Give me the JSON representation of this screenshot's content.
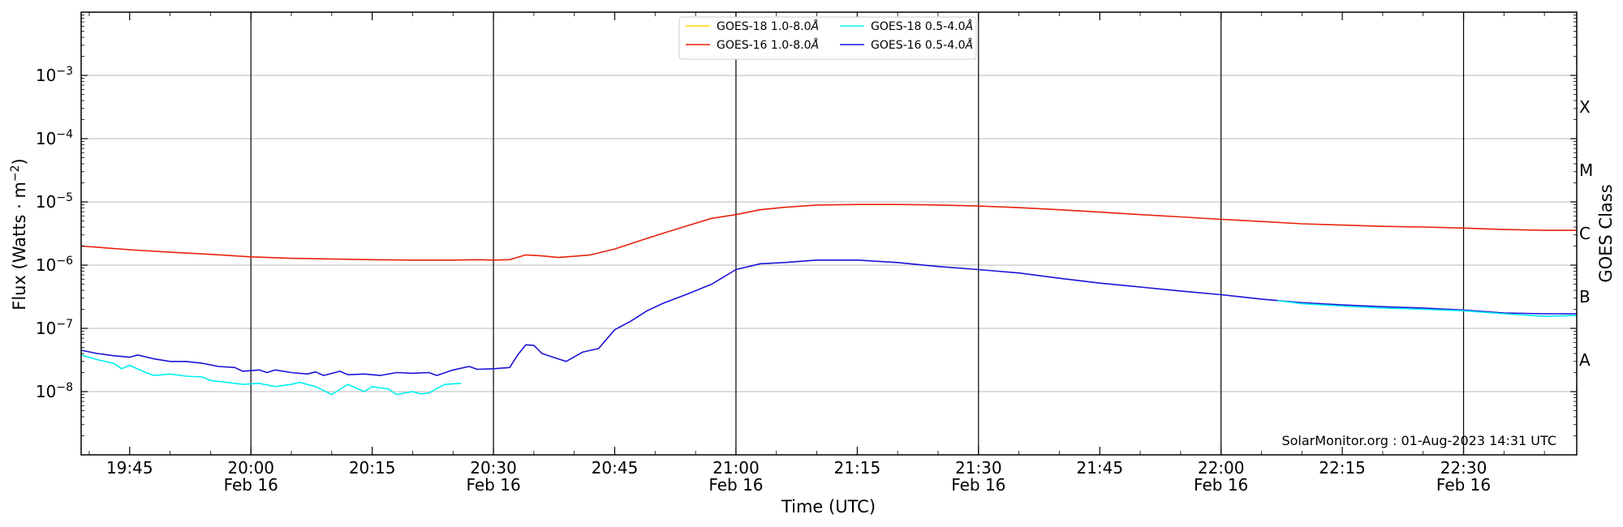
{
  "chart_data": {
    "type": "line",
    "xlabel": "Time (UTC)",
    "ylabel_base": "Flux (Watts · m",
    "ylabel_sup": "−2",
    "ylabel_tail": ")",
    "y_scale": "log",
    "ylim_exp": [
      -9,
      -2
    ],
    "yticks": [
      {
        "exp": -8,
        "base": "10",
        "sup": "−8"
      },
      {
        "exp": -7,
        "base": "10",
        "sup": "−7"
      },
      {
        "exp": -6,
        "base": "10",
        "sup": "−6"
      },
      {
        "exp": -5,
        "base": "10",
        "sup": "−5"
      },
      {
        "exp": -4,
        "base": "10",
        "sup": "−4"
      },
      {
        "exp": -3,
        "base": "10",
        "sup": "−3"
      }
    ],
    "xlim": [
      "19:39",
      "22:44"
    ],
    "xticks": [
      {
        "t": "19:45",
        "label": "19:45",
        "date": ""
      },
      {
        "t": "20:00",
        "label": "20:00",
        "date": "Feb 16"
      },
      {
        "t": "20:15",
        "label": "20:15",
        "date": ""
      },
      {
        "t": "20:30",
        "label": "20:30",
        "date": "Feb 16"
      },
      {
        "t": "20:45",
        "label": "20:45",
        "date": ""
      },
      {
        "t": "21:00",
        "label": "21:00",
        "date": "Feb 16"
      },
      {
        "t": "21:15",
        "label": "21:15",
        "date": ""
      },
      {
        "t": "21:30",
        "label": "21:30",
        "date": "Feb 16"
      },
      {
        "t": "21:45",
        "label": "21:45",
        "date": ""
      },
      {
        "t": "22:00",
        "label": "22:00",
        "date": "Feb 16"
      },
      {
        "t": "22:15",
        "label": "22:15",
        "date": ""
      },
      {
        "t": "22:30",
        "label": "22:30",
        "date": "Feb 16"
      }
    ],
    "vlines": [
      "20:00",
      "20:30",
      "21:00",
      "21:30",
      "22:00",
      "22:30"
    ],
    "grid": "horizontal",
    "right_axis": {
      "title": "GOES Class",
      "classes": [
        {
          "label": "A",
          "exp": -7.5
        },
        {
          "label": "B",
          "exp": -6.5
        },
        {
          "label": "C",
          "exp": -5.5
        },
        {
          "label": "M",
          "exp": -4.5
        },
        {
          "label": "X",
          "exp": -3.5
        }
      ]
    },
    "credit": "SolarMonitor.org : 01-Aug-2023 14:31 UTC",
    "legend_position": "top-center",
    "legend": [
      {
        "name": "GOES-18 1.0-8.0",
        "unit": "Å",
        "color": "#ffd700"
      },
      {
        "name": "GOES-16 1.0-8.0",
        "unit": "Å",
        "color": "#e8210c"
      },
      {
        "name": "GOES-18 0.5-4.0",
        "unit": "Å",
        "color": "#00f0f0"
      },
      {
        "name": "GOES-16 0.5-4.0",
        "unit": "Å",
        "color": "#1c12d6"
      }
    ],
    "series": [
      {
        "name": "GOES-16 1.0-8.0Å",
        "color": "#e8210c",
        "points": [
          [
            "19:39",
            2e-06
          ],
          [
            "19:45",
            1.75e-06
          ],
          [
            "19:50",
            1.6e-06
          ],
          [
            "19:55",
            1.48e-06
          ],
          [
            "20:00",
            1.35e-06
          ],
          [
            "20:05",
            1.28e-06
          ],
          [
            "20:10",
            1.25e-06
          ],
          [
            "20:15",
            1.22e-06
          ],
          [
            "20:20",
            1.2e-06
          ],
          [
            "20:25",
            1.2e-06
          ],
          [
            "20:28",
            1.22e-06
          ],
          [
            "20:30",
            1.2e-06
          ],
          [
            "20:32",
            1.22e-06
          ],
          [
            "20:34",
            1.45e-06
          ],
          [
            "20:36",
            1.4e-06
          ],
          [
            "20:38",
            1.32e-06
          ],
          [
            "20:40",
            1.38e-06
          ],
          [
            "20:42",
            1.45e-06
          ],
          [
            "20:45",
            1.8e-06
          ],
          [
            "20:48",
            2.4e-06
          ],
          [
            "20:51",
            3.2e-06
          ],
          [
            "20:54",
            4.2e-06
          ],
          [
            "20:57",
            5.5e-06
          ],
          [
            "21:00",
            6.3e-06
          ],
          [
            "21:03",
            7.5e-06
          ],
          [
            "21:06",
            8.2e-06
          ],
          [
            "21:10",
            8.9e-06
          ],
          [
            "21:15",
            9.1e-06
          ],
          [
            "21:20",
            9.1e-06
          ],
          [
            "21:25",
            8.9e-06
          ],
          [
            "21:30",
            8.6e-06
          ],
          [
            "21:35",
            8.1e-06
          ],
          [
            "21:40",
            7.5e-06
          ],
          [
            "21:45",
            6.9e-06
          ],
          [
            "21:50",
            6.3e-06
          ],
          [
            "21:55",
            5.8e-06
          ],
          [
            "22:00",
            5.3e-06
          ],
          [
            "22:05",
            4.9e-06
          ],
          [
            "22:10",
            4.5e-06
          ],
          [
            "22:15",
            4.3e-06
          ],
          [
            "22:20",
            4.1e-06
          ],
          [
            "22:25",
            4e-06
          ],
          [
            "22:30",
            3.85e-06
          ],
          [
            "22:35",
            3.65e-06
          ],
          [
            "22:40",
            3.55e-06
          ],
          [
            "22:44",
            3.55e-06
          ]
        ]
      },
      {
        "name": "GOES-16 0.5-4.0Å",
        "color": "#1c12d6",
        "points": [
          [
            "19:39",
            4.5e-08
          ],
          [
            "19:41",
            4e-08
          ],
          [
            "19:43",
            3.7e-08
          ],
          [
            "19:45",
            3.5e-08
          ],
          [
            "19:46",
            3.8e-08
          ],
          [
            "19:48",
            3.3e-08
          ],
          [
            "19:50",
            3e-08
          ],
          [
            "19:52",
            3e-08
          ],
          [
            "19:54",
            2.8e-08
          ],
          [
            "19:56",
            2.5e-08
          ],
          [
            "19:58",
            2.4e-08
          ],
          [
            "19:59",
            2.1e-08
          ],
          [
            "20:01",
            2.2e-08
          ],
          [
            "20:02",
            2e-08
          ],
          [
            "20:03",
            2.2e-08
          ],
          [
            "20:05",
            2e-08
          ],
          [
            "20:07",
            1.9e-08
          ],
          [
            "20:08",
            2.05e-08
          ],
          [
            "20:09",
            1.8e-08
          ],
          [
            "20:11",
            2.1e-08
          ],
          [
            "20:12",
            1.85e-08
          ],
          [
            "20:14",
            1.9e-08
          ],
          [
            "20:16",
            1.8e-08
          ],
          [
            "20:18",
            2e-08
          ],
          [
            "20:20",
            1.95e-08
          ],
          [
            "20:22",
            2e-08
          ],
          [
            "20:23",
            1.8e-08
          ],
          [
            "20:25",
            2.2e-08
          ],
          [
            "20:27",
            2.5e-08
          ],
          [
            "20:28",
            2.25e-08
          ],
          [
            "20:30",
            2.3e-08
          ],
          [
            "20:32",
            2.4e-08
          ],
          [
            "20:33",
            3.8e-08
          ],
          [
            "20:34",
            5.5e-08
          ],
          [
            "20:35",
            5.4e-08
          ],
          [
            "20:36",
            4e-08
          ],
          [
            "20:38",
            3.3e-08
          ],
          [
            "20:39",
            3e-08
          ],
          [
            "20:41",
            4.2e-08
          ],
          [
            "20:43",
            4.8e-08
          ],
          [
            "20:45",
            9.5e-08
          ],
          [
            "20:47",
            1.3e-07
          ],
          [
            "20:49",
            1.9e-07
          ],
          [
            "20:51",
            2.5e-07
          ],
          [
            "20:54",
            3.5e-07
          ],
          [
            "20:57",
            5e-07
          ],
          [
            "21:00",
            8.5e-07
          ],
          [
            "21:03",
            1.05e-06
          ],
          [
            "21:06",
            1.1e-06
          ],
          [
            "21:10",
            1.2e-06
          ],
          [
            "21:15",
            1.2e-06
          ],
          [
            "21:20",
            1.1e-06
          ],
          [
            "21:25",
            9.5e-07
          ],
          [
            "21:30",
            8.5e-07
          ],
          [
            "21:35",
            7.5e-07
          ],
          [
            "21:40",
            6.2e-07
          ],
          [
            "21:45",
            5.2e-07
          ],
          [
            "21:50",
            4.5e-07
          ],
          [
            "21:55",
            3.9e-07
          ],
          [
            "22:00",
            3.4e-07
          ],
          [
            "22:05",
            2.9e-07
          ],
          [
            "22:10",
            2.55e-07
          ],
          [
            "22:15",
            2.35e-07
          ],
          [
            "22:20",
            2.2e-07
          ],
          [
            "22:25",
            2.1e-07
          ],
          [
            "22:30",
            1.95e-07
          ],
          [
            "22:35",
            1.75e-07
          ],
          [
            "22:40",
            1.7e-07
          ],
          [
            "22:44",
            1.7e-07
          ]
        ]
      },
      {
        "name": "GOES-18 0.5-4.0Å",
        "color": "#00f0f0",
        "points": [
          [
            "19:39",
            3.8e-08
          ],
          [
            "19:41",
            3.2e-08
          ],
          [
            "19:43",
            2.8e-08
          ],
          [
            "19:44",
            2.3e-08
          ],
          [
            "19:45",
            2.6e-08
          ],
          [
            "19:47",
            2e-08
          ],
          [
            "19:48",
            1.8e-08
          ],
          [
            "19:50",
            1.9e-08
          ],
          [
            "19:52",
            1.75e-08
          ],
          [
            "19:54",
            1.7e-08
          ],
          [
            "19:55",
            1.5e-08
          ],
          [
            "19:57",
            1.4e-08
          ],
          [
            "19:59",
            1.3e-08
          ],
          [
            "20:01",
            1.35e-08
          ],
          [
            "20:03",
            1.2e-08
          ],
          [
            "20:05",
            1.3e-08
          ],
          [
            "20:06",
            1.4e-08
          ],
          [
            "20:08",
            1.2e-08
          ],
          [
            "20:10",
            9e-09
          ],
          [
            "20:12",
            1.3e-08
          ],
          [
            "20:14",
            1e-08
          ],
          [
            "20:15",
            1.2e-08
          ],
          [
            "20:17",
            1.1e-08
          ],
          [
            "20:18",
            9e-09
          ],
          [
            "20:20",
            1e-08
          ],
          [
            "20:21",
            9.2e-09
          ],
          [
            "20:22",
            9.5e-09
          ],
          [
            "20:24",
            1.3e-08
          ],
          [
            "20:26",
            1.35e-08
          ],
          [
            null,
            null
          ],
          [
            "22:07",
            2.75e-07
          ],
          [
            "22:10",
            2.45e-07
          ],
          [
            "22:15",
            2.25e-07
          ],
          [
            "22:20",
            2.1e-07
          ],
          [
            "22:25",
            2e-07
          ],
          [
            "22:30",
            1.9e-07
          ],
          [
            "22:35",
            1.7e-07
          ],
          [
            "22:40",
            1.55e-07
          ],
          [
            "22:44",
            1.6e-07
          ]
        ]
      }
    ]
  }
}
